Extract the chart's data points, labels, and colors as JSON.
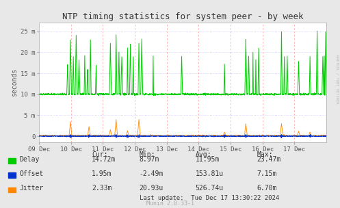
{
  "title": "NTP timing statistics for system peer - by week",
  "ylabel": "seconds",
  "background_color": "#e8e8e8",
  "plot_bg_color": "#ffffff",
  "delay_color": "#00cc00",
  "offset_color": "#0033cc",
  "jitter_color": "#ff8800",
  "ytick_vals": [
    0,
    5,
    10,
    15,
    20,
    25
  ],
  "ytick_labels": [
    "0",
    "5 m",
    "10 m",
    "15 m",
    "20 m",
    "25 m"
  ],
  "xtick_labels": [
    "09 Dec",
    "10 Dec",
    "11 Dec",
    "12 Dec",
    "13 Dec",
    "14 Dec",
    "15 Dec",
    "16 Dec",
    "17 Dec"
  ],
  "right_label": "RRDTOOL / TOBI OETIKER",
  "legend_items": [
    "Delay",
    "Offset",
    "Jitter"
  ],
  "legend_colors": [
    "#00cc00",
    "#0033cc",
    "#ff8800"
  ],
  "stats_headers": [
    "Cur:",
    "Min:",
    "Avg:",
    "Max:"
  ],
  "stats_delay": [
    "14.72m",
    "8.97m",
    "11.95m",
    "23.47m"
  ],
  "stats_offset": [
    "1.95m",
    "-2.49m",
    "153.81u",
    "7.15m"
  ],
  "stats_jitter": [
    "2.33m",
    "20.93u",
    "526.74u",
    "6.70m"
  ],
  "last_update": "Last update:  Tue Dec 17 13:30:22 2024",
  "munin_label": "Munin 2.0.33-1"
}
